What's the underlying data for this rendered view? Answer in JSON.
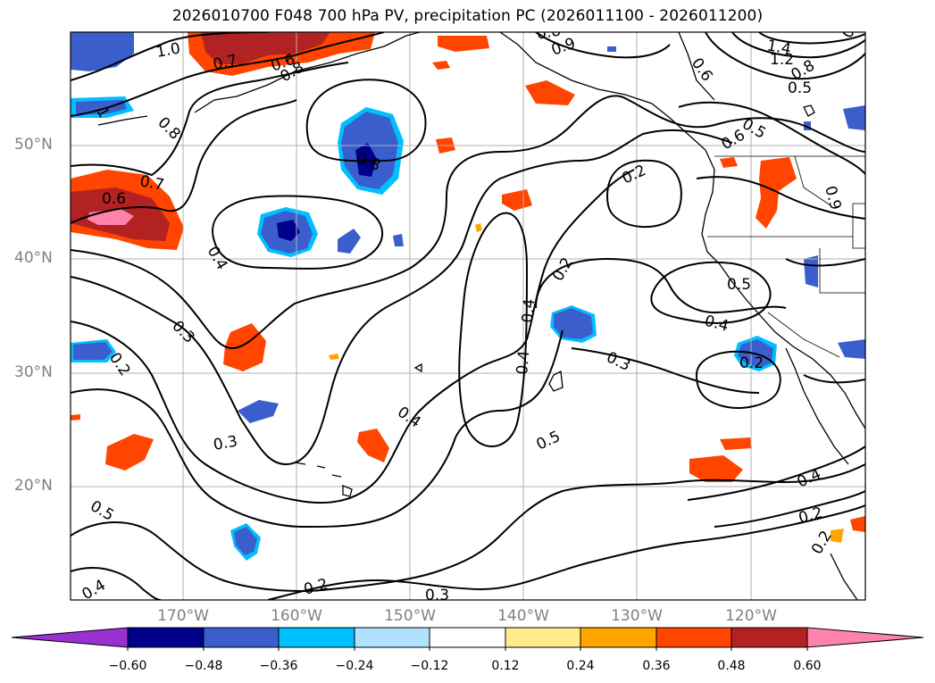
{
  "title": "2026010700 F048 700 hPa PV, precipitation PC (2026011100 - 2026011200)",
  "lat_labels": [
    "50°N",
    "40°N",
    "30°N",
    "20°N"
  ],
  "lon_labels": [
    "170°W",
    "160°W",
    "150°W",
    "140°W",
    "130°W",
    "120°W"
  ],
  "colorbar": {
    "ticks": [
      "−0.60",
      "−0.48",
      "−0.36",
      "−0.24",
      "−0.12",
      "0.12",
      "0.24",
      "0.36",
      "0.48",
      "0.60"
    ],
    "colors": [
      "#9b30d0",
      "#00008b",
      "#3a5fcd",
      "#00bfff",
      "#b0e2ff",
      "#ffffff",
      "#ffec8b",
      "#ffa500",
      "#ff4500",
      "#b22222",
      "#ff82ab"
    ]
  },
  "contour_labels": [
    "1.0",
    "0.7",
    "0.6",
    "0.8",
    "0.8",
    "0.7",
    "0.6",
    "0.4",
    "0.8",
    "0.3",
    "0.2",
    "0.3",
    "0.5",
    "0.4",
    "0.2",
    "0.3",
    "0.4",
    "0.5",
    "0.2",
    "0.2",
    "0.4",
    "0.3",
    "0.5",
    "0.6",
    "0.5",
    "0.4",
    "0.2",
    "0.4",
    "0.2",
    "0.2",
    "1.4",
    "1.2",
    "0.8",
    "0.5",
    "0.6",
    "1",
    "0.9",
    "0.4",
    "0.9",
    "0.8",
    "0.4"
  ]
}
